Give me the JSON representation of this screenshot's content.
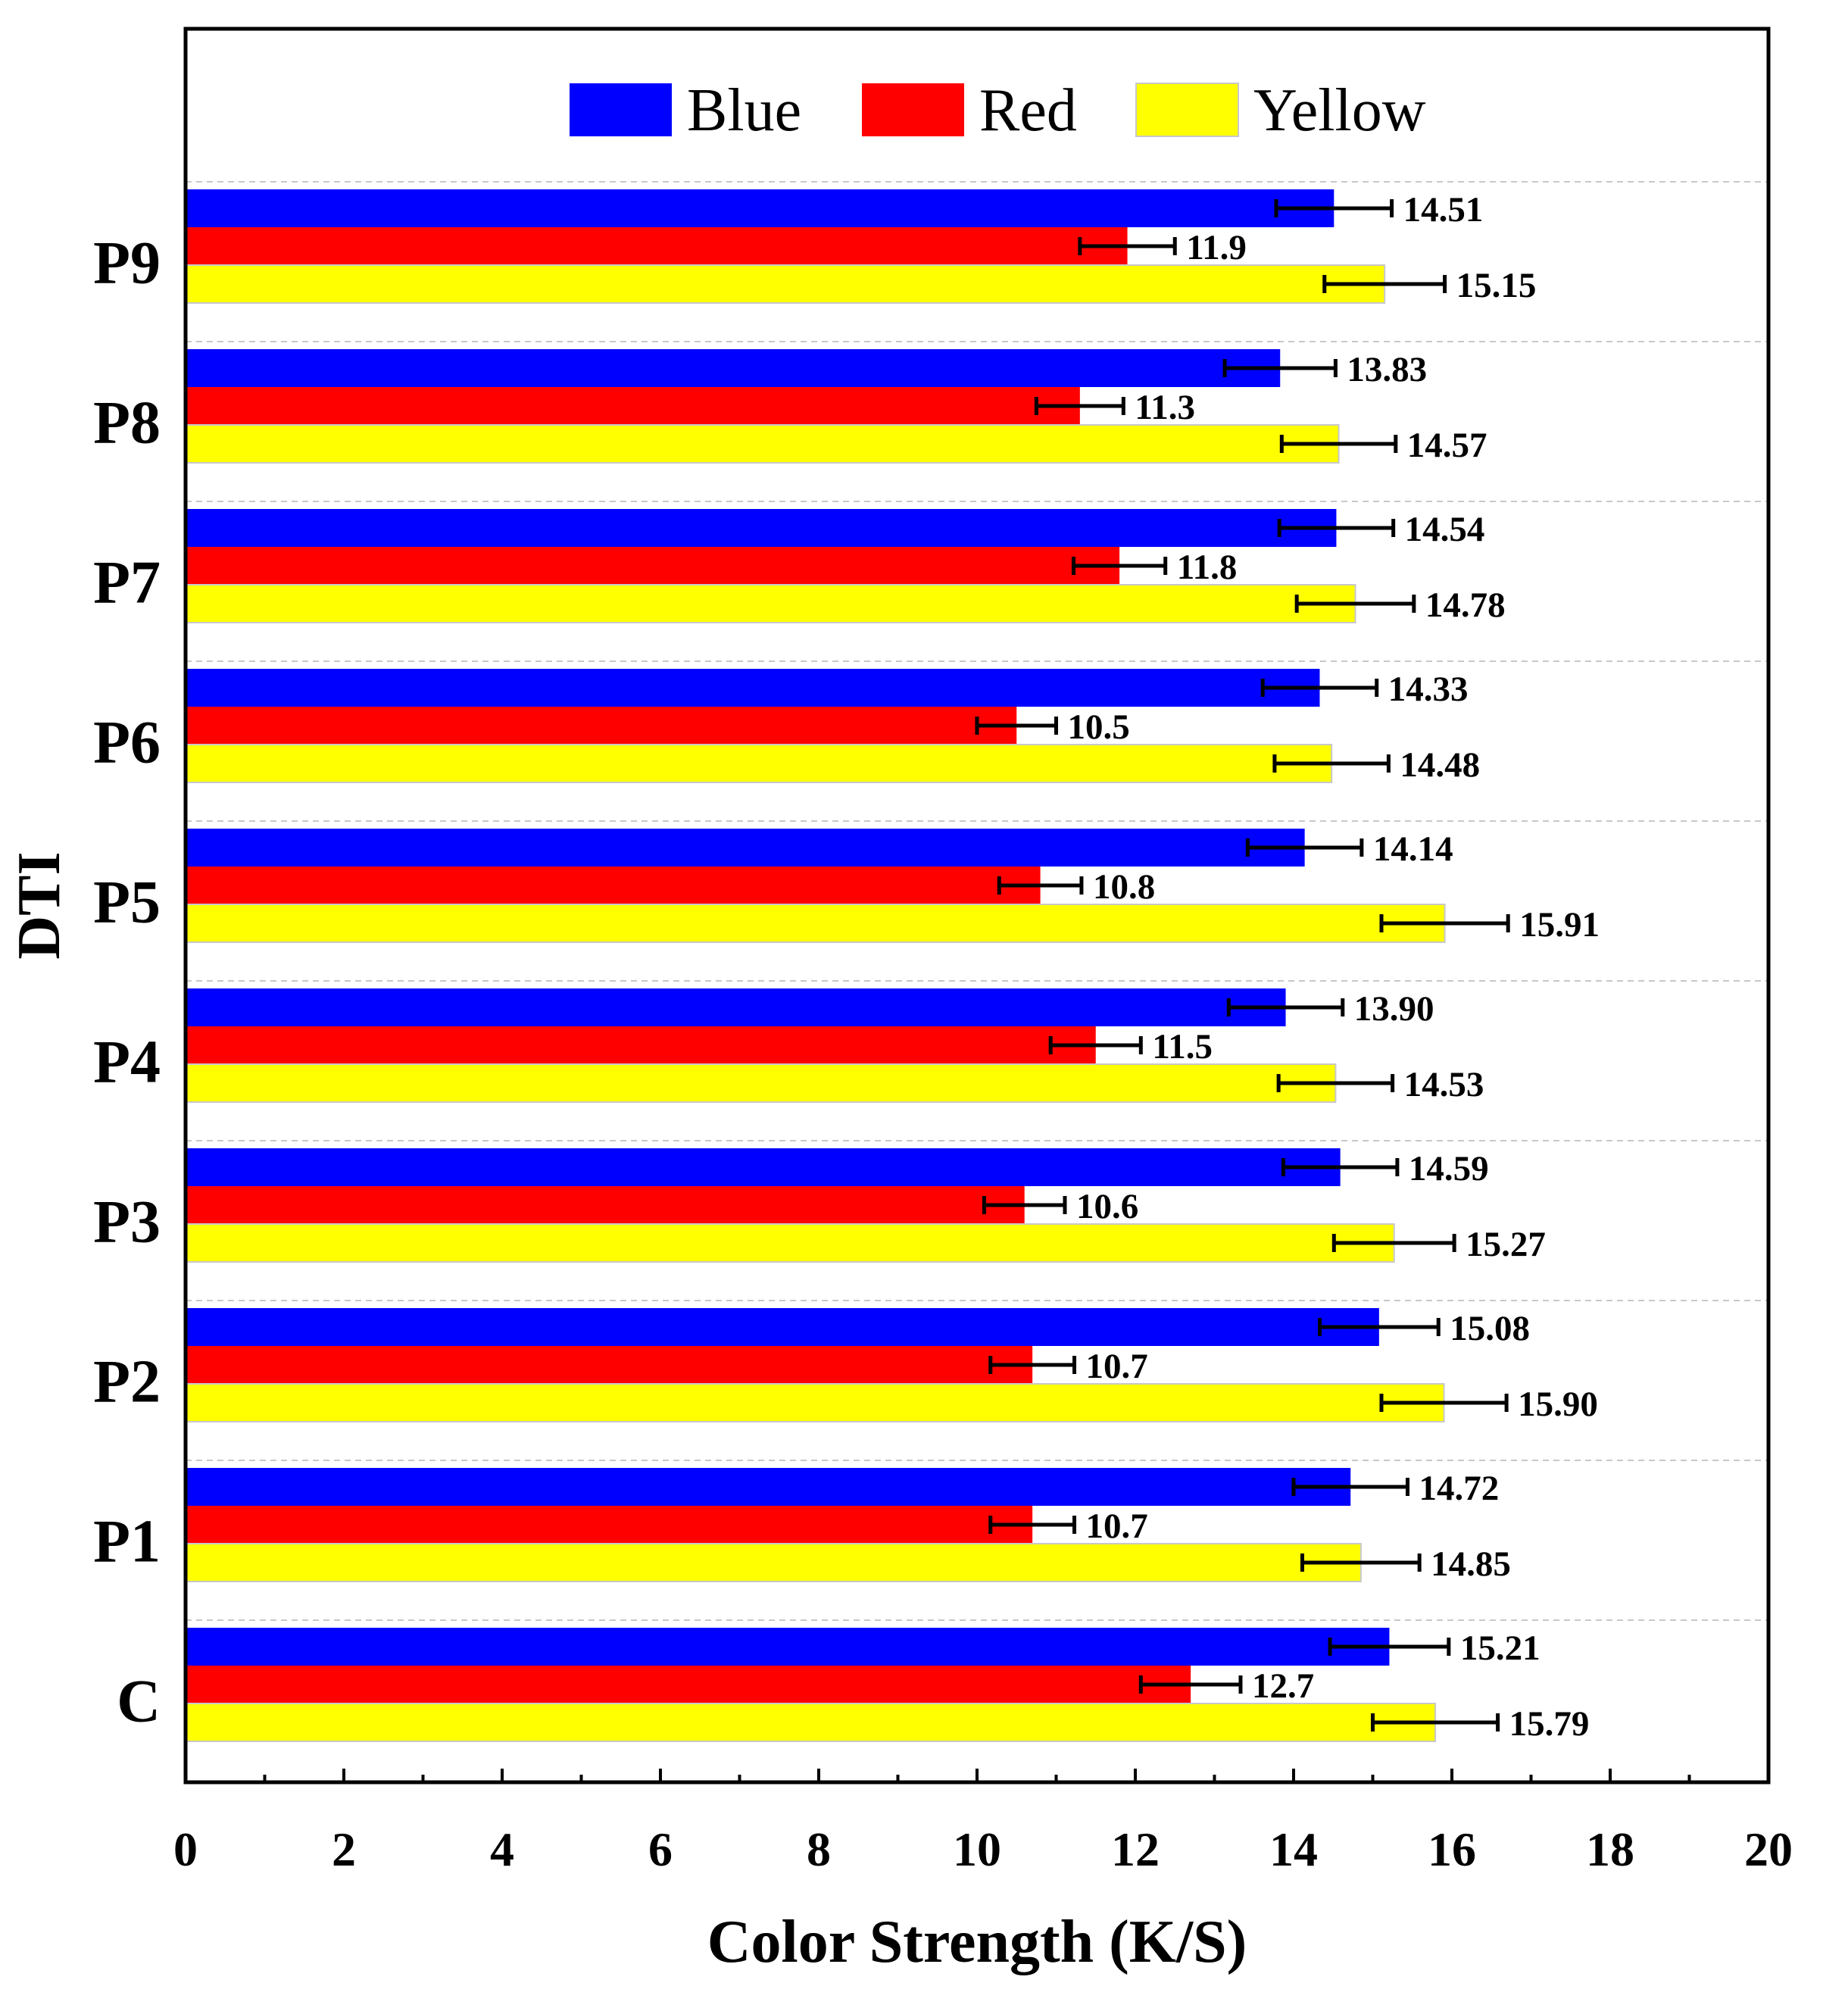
{
  "chart_data": {
    "type": "bar",
    "orientation": "horizontal",
    "title": "",
    "xlabel": "Color Strength (K/S)",
    "ylabel": "DTI",
    "xlim": [
      0,
      20
    ],
    "x_ticks": [
      "0",
      "2",
      "4",
      "6",
      "8",
      "10",
      "12",
      "14",
      "16",
      "18",
      "20"
    ],
    "categories": [
      "C",
      "P1",
      "P2",
      "P3",
      "P4",
      "P5",
      "P6",
      "P7",
      "P8",
      "P9"
    ],
    "legend_position": "top-center",
    "grid": "dashed horizontal separators between categories",
    "series": [
      {
        "name": "Blue",
        "color": "#0000ff",
        "values": [
          15.21,
          14.72,
          15.08,
          14.59,
          13.9,
          14.14,
          14.33,
          14.54,
          13.83,
          14.51
        ],
        "labels": [
          "15.21",
          "14.72",
          "15.08",
          "14.59",
          "13.90",
          "14.14",
          "14.33",
          "14.54",
          "13.83",
          "14.51"
        ],
        "errors": [
          0.75,
          0.72,
          0.75,
          0.72,
          0.72,
          0.72,
          0.72,
          0.72,
          0.7,
          0.73
        ]
      },
      {
        "name": "Red",
        "color": "#ff0000",
        "values": [
          12.7,
          10.7,
          10.7,
          10.6,
          11.5,
          10.8,
          10.5,
          11.8,
          11.3,
          11.9
        ],
        "labels": [
          "12.7",
          "10.7",
          "10.7",
          "10.6",
          "11.5",
          "10.8",
          "10.5",
          "11.8",
          "11.3",
          "11.9"
        ],
        "errors": [
          0.63,
          0.53,
          0.53,
          0.51,
          0.57,
          0.52,
          0.5,
          0.58,
          0.55,
          0.6
        ]
      },
      {
        "name": "Yellow",
        "color": "#ffff00",
        "values": [
          15.79,
          14.85,
          15.9,
          15.27,
          14.53,
          15.91,
          14.48,
          14.78,
          14.57,
          15.15
        ],
        "labels": [
          "15.79",
          "14.85",
          "15.90",
          "15.27",
          "14.53",
          "15.91",
          "14.48",
          "14.78",
          "14.57",
          "15.15"
        ],
        "errors": [
          0.79,
          0.74,
          0.79,
          0.76,
          0.72,
          0.8,
          0.72,
          0.74,
          0.72,
          0.76
        ]
      }
    ]
  }
}
